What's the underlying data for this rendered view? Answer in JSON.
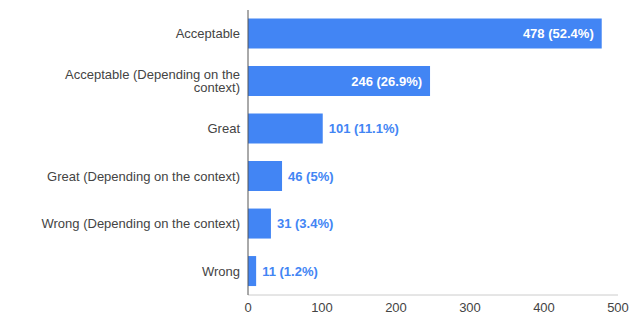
{
  "chart_data": {
    "type": "bar",
    "orientation": "horizontal",
    "categories": [
      "Acceptable",
      "Acceptable (Depending on the context)",
      "Great",
      "Great (Depending on the context)",
      "Wrong (Depending on the context)",
      "Wrong"
    ],
    "values": [
      478,
      246,
      101,
      46,
      31,
      11
    ],
    "value_labels": [
      "478 (52.4%)",
      "246 (26.9%)",
      "101 (11.1%)",
      "46 (5%)",
      "31 (3.4%)",
      "11 (1.2%)"
    ],
    "color": "#4285f4",
    "xlim": [
      0,
      500
    ],
    "xticks": [
      0,
      100,
      200,
      300,
      400,
      500
    ],
    "grid": false,
    "data_labels": true
  }
}
